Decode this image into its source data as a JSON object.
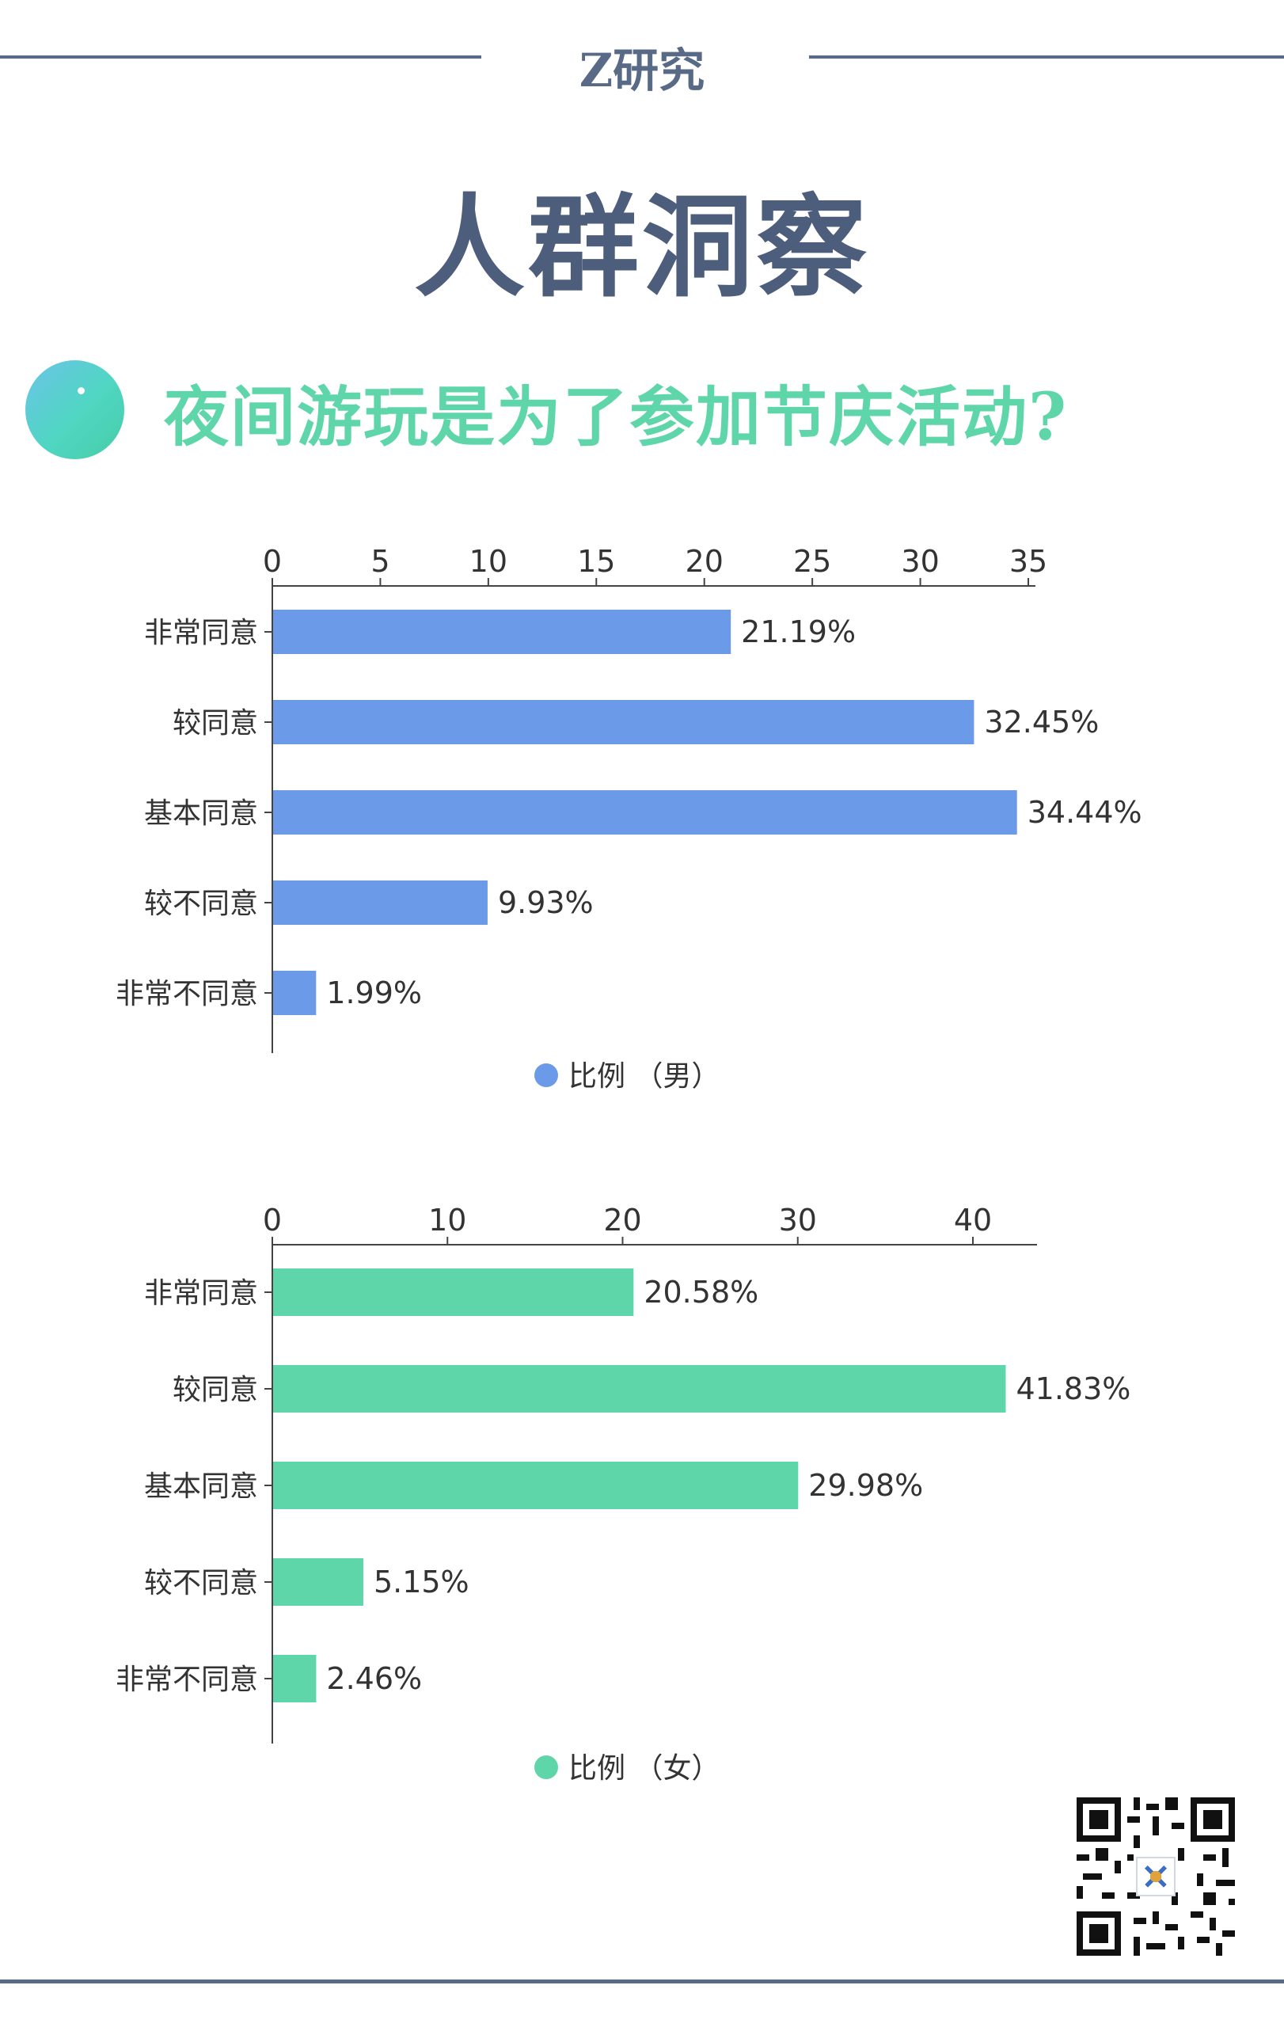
{
  "header": {
    "brand": "Z研究",
    "title": "人群洞察"
  },
  "question": {
    "text": "夜间游玩是为了参加节庆活动?"
  },
  "chart_data": [
    {
      "type": "bar",
      "orientation": "horizontal",
      "categories": [
        "非常同意",
        "较同意",
        "基本同意",
        "较不同意",
        "非常不同意"
      ],
      "series": [
        {
          "name": "比例 （男）",
          "values": [
            21.19,
            32.45,
            34.44,
            9.93,
            1.99
          ]
        }
      ],
      "value_labels": [
        "21.19%",
        "32.45%",
        "34.44%",
        "9.93%",
        "1.99%"
      ],
      "xlim": [
        0,
        36
      ],
      "xticks": [
        0,
        5,
        10,
        15,
        20,
        25,
        30,
        35
      ],
      "axis_position": "top",
      "legend": "bottom-center",
      "color": "#6b9be8"
    },
    {
      "type": "bar",
      "orientation": "horizontal",
      "categories": [
        "非常同意",
        "较同意",
        "基本同意",
        "较不同意",
        "非常不同意"
      ],
      "series": [
        {
          "name": "比例 （女）",
          "values": [
            20.58,
            41.83,
            29.98,
            5.15,
            2.46
          ]
        }
      ],
      "value_labels": [
        "20.58%",
        "41.83%",
        "29.98%",
        "5.15%",
        "2.46%"
      ],
      "xlim": [
        0,
        44
      ],
      "xticks": [
        0,
        10,
        20,
        30,
        40
      ],
      "axis_position": "top",
      "legend": "bottom-center",
      "color": "#5fd6a9"
    }
  ],
  "colors": {
    "accent": "#596a86",
    "title": "#4d5d7c",
    "question": "#5fd6a9"
  }
}
